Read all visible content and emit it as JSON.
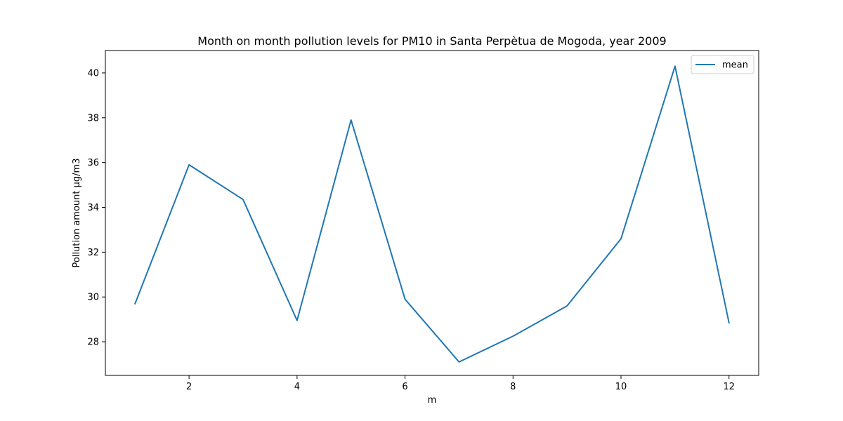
{
  "chart_data": {
    "type": "line",
    "title": "Month on month pollution levels for PM10 in Santa Perpètua de Mogoda, year 2009",
    "xlabel": "m",
    "ylabel": "Pollution amount μg/m3",
    "x": [
      1,
      2,
      3,
      4,
      5,
      6,
      7,
      8,
      9,
      10,
      11,
      12
    ],
    "series": [
      {
        "name": "mean",
        "color": "#1f77b4",
        "values": [
          29.7,
          35.9,
          34.35,
          28.95,
          37.9,
          29.9,
          27.1,
          28.25,
          29.6,
          32.6,
          40.3,
          28.85
        ]
      }
    ],
    "xlim": [
      0.45,
      12.55
    ],
    "ylim": [
      26.5,
      41.0
    ],
    "xticks": [
      2,
      4,
      6,
      8,
      10,
      12
    ],
    "yticks": [
      28,
      30,
      32,
      34,
      36,
      38,
      40
    ],
    "xtick_labels": [
      "2",
      "4",
      "6",
      "8",
      "10",
      "12"
    ],
    "ytick_labels": [
      "28",
      "30",
      "32",
      "34",
      "36",
      "38",
      "40"
    ],
    "grid": false,
    "legend": {
      "position": "upper-right",
      "entries": [
        "mean"
      ]
    }
  }
}
